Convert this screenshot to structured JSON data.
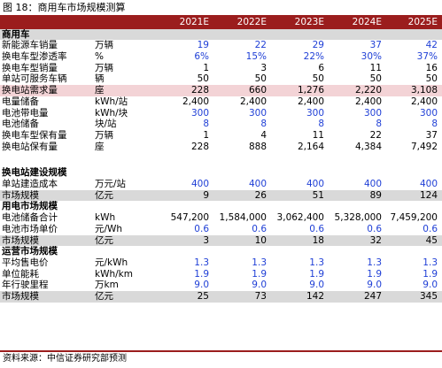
{
  "caption": "图 18：商用车市场规模测算",
  "years": [
    "2021E",
    "2022E",
    "2023E",
    "2024E",
    "2025E"
  ],
  "rows": [
    {
      "type": "section",
      "label": "商用车",
      "unit": "",
      "values": [
        "",
        "",
        "",
        "",
        ""
      ],
      "blue": false
    },
    {
      "type": "normal",
      "label": "新能源车销量",
      "unit": "万辆",
      "values": [
        "19",
        "22",
        "29",
        "37",
        "42"
      ],
      "blue": true
    },
    {
      "type": "normal",
      "label": "换电车型渗透率",
      "unit": "%",
      "values": [
        "6%",
        "15%",
        "22%",
        "30%",
        "37%"
      ],
      "blue": true
    },
    {
      "type": "normal",
      "label": "换电车型销量",
      "unit": "万辆",
      "values": [
        "1",
        "3",
        "6",
        "11",
        "16"
      ],
      "blue": false
    },
    {
      "type": "normal",
      "label": "单站可服务车辆",
      "unit": "辆",
      "values": [
        "50",
        "50",
        "50",
        "50",
        "50"
      ],
      "blue": false
    },
    {
      "type": "highlight",
      "label": "换电站需求量",
      "unit": "座",
      "values": [
        "228",
        "660",
        "1,276",
        "2,220",
        "3,108"
      ],
      "blue": false
    },
    {
      "type": "normal",
      "label": "电量储备",
      "unit": "kWh/站",
      "values": [
        "2,400",
        "2,400",
        "2,400",
        "2,400",
        "2,400"
      ],
      "blue": false
    },
    {
      "type": "normal",
      "label": "电池带电量",
      "unit": "kWh/块",
      "values": [
        "300",
        "300",
        "300",
        "300",
        "300"
      ],
      "blue": true
    },
    {
      "type": "normal",
      "label": "电池储备",
      "unit": "块/站",
      "values": [
        "8",
        "8",
        "8",
        "8",
        "8"
      ],
      "blue": true
    },
    {
      "type": "normal",
      "label": "换电车型保有量",
      "unit": "万辆",
      "values": [
        "1",
        "4",
        "11",
        "22",
        "37"
      ],
      "blue": false
    },
    {
      "type": "normal",
      "label": "换电站保有量",
      "unit": "座",
      "values": [
        "228",
        "888",
        "2,164",
        "4,384",
        "7,492"
      ],
      "blue": false
    },
    {
      "type": "blank"
    },
    {
      "type": "blank"
    },
    {
      "type": "section-plain",
      "label": "换电站建设规模",
      "unit": "",
      "values": [
        "",
        "",
        "",
        "",
        ""
      ],
      "blue": false
    },
    {
      "type": "normal",
      "label": "单站建造成本",
      "unit": "万元/站",
      "values": [
        "400",
        "400",
        "400",
        "400",
        "400"
      ],
      "blue": true
    },
    {
      "type": "gray",
      "label": "市场规模",
      "unit": "亿元",
      "values": [
        "9",
        "26",
        "51",
        "89",
        "124"
      ],
      "blue": false
    },
    {
      "type": "section-plain",
      "label": "用电市场规模",
      "unit": "",
      "values": [
        "",
        "",
        "",
        "",
        ""
      ],
      "blue": false
    },
    {
      "type": "normal",
      "label": "电池储备合计",
      "unit": "kWh",
      "values": [
        "547,200",
        "1,584,000",
        "3,062,400",
        "5,328,000",
        "7,459,200"
      ],
      "blue": false
    },
    {
      "type": "normal",
      "label": "电池市场单价",
      "unit": "元/Wh",
      "values": [
        "0.6",
        "0.6",
        "0.6",
        "0.6",
        "0.6"
      ],
      "blue": true
    },
    {
      "type": "gray",
      "label": "市场规模",
      "unit": "亿元",
      "values": [
        "3",
        "10",
        "18",
        "32",
        "45"
      ],
      "blue": false
    },
    {
      "type": "section-plain",
      "label": "运营市场规模",
      "unit": "",
      "values": [
        "",
        "",
        "",
        "",
        ""
      ],
      "blue": false
    },
    {
      "type": "normal",
      "label": "平均售电价",
      "unit": "元/kWh",
      "values": [
        "1.3",
        "1.3",
        "1.3",
        "1.3",
        "1.3"
      ],
      "blue": true
    },
    {
      "type": "normal",
      "label": "单位能耗",
      "unit": "kWh/km",
      "values": [
        "1.9",
        "1.9",
        "1.9",
        "1.9",
        "1.9"
      ],
      "blue": true
    },
    {
      "type": "normal",
      "label": "年行驶里程",
      "unit": "万km",
      "values": [
        "9.0",
        "9.0",
        "9.0",
        "9.0",
        "9.0"
      ],
      "blue": true
    },
    {
      "type": "gray",
      "label": "市场规模",
      "unit": "亿元",
      "values": [
        "25",
        "73",
        "142",
        "247",
        "345"
      ],
      "blue": false
    }
  ],
  "source": "资料来源：中信证券研究部预测"
}
